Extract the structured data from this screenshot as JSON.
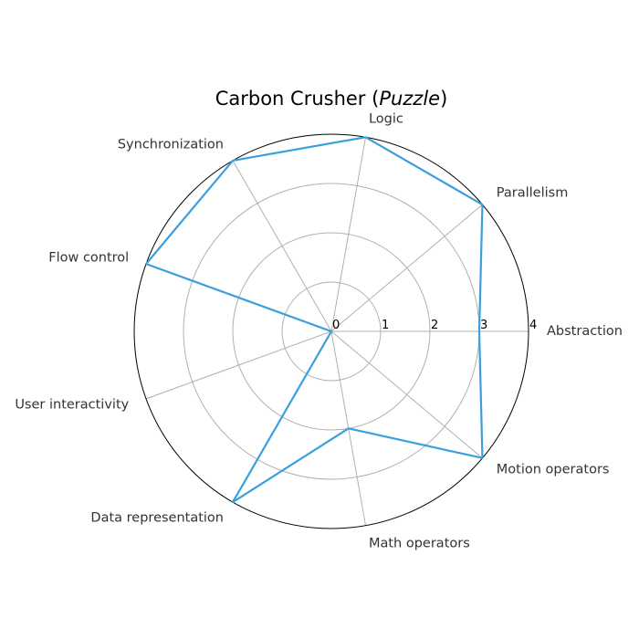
{
  "chart_data": {
    "type": "radar",
    "title": "Carbon Crusher (",
    "title_emphasis": "Puzzle",
    "title_suffix": ")",
    "categories": [
      "Abstraction",
      "Parallelism",
      "Logic",
      "Synchronization",
      "Flow control",
      "User interactivity",
      "Data representation",
      "Math operators",
      "Motion operators"
    ],
    "series": [
      {
        "values": [
          3,
          4,
          4,
          4,
          4,
          0,
          4,
          2,
          4
        ]
      }
    ],
    "rlim": [
      0,
      4
    ],
    "rticks": [
      "0",
      "1",
      "2",
      "3",
      "4"
    ],
    "grid": true,
    "colors": {
      "series": "#3a9fdc",
      "title": "#3a9fdc",
      "grid": "#b0b0b0",
      "frame": "#000000"
    }
  }
}
